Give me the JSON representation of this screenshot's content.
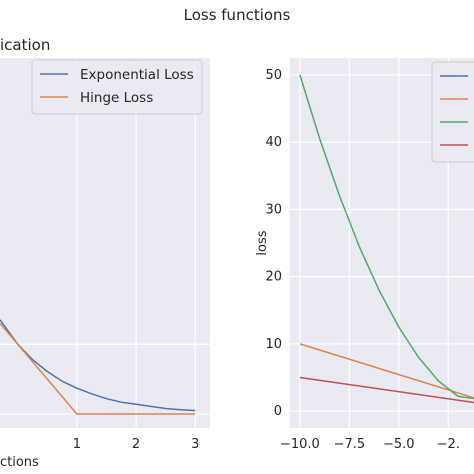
{
  "figure": {
    "suptitle": "Loss functions"
  },
  "chart_data": [
    {
      "type": "line",
      "title": "ication",
      "xlabel": "ctions",
      "ylabel": "",
      "xlim": [
        -0.3,
        3.25
      ],
      "ylim": [
        -0.2,
        5.1
      ],
      "xticks": [
        1,
        2,
        3
      ],
      "grid": true,
      "legend": "top-right",
      "series": [
        {
          "name": "Exponential Loss",
          "color": "#4c72b0",
          "x": [
            -0.3,
            0,
            0.25,
            0.5,
            0.75,
            1,
            1.25,
            1.5,
            1.75,
            2,
            2.25,
            2.5,
            2.75,
            3
          ],
          "y": [
            1.35,
            1.0,
            0.78,
            0.61,
            0.47,
            0.37,
            0.29,
            0.22,
            0.17,
            0.14,
            0.11,
            0.08,
            0.06,
            0.05
          ]
        },
        {
          "name": "Hinge Loss",
          "color": "#dd8452",
          "x": [
            -0.3,
            1,
            3
          ],
          "y": [
            1.3,
            0,
            0
          ]
        }
      ]
    },
    {
      "type": "line",
      "title": "",
      "xlabel": "",
      "ylabel": "loss",
      "xlim": [
        -10.5,
        -1.2
      ],
      "ylim": [
        -2.5,
        52.5
      ],
      "xticks": [
        -10.0,
        -7.5,
        -5.0,
        -2.5
      ],
      "xtick_labels": [
        "−10.0",
        "−7.5",
        "−5.0",
        "−2."
      ],
      "yticks": [
        0,
        10,
        20,
        30,
        40,
        50
      ],
      "grid": true,
      "legend": "top-right",
      "series": [
        {
          "color": "#4c72b0",
          "x": [],
          "y": []
        },
        {
          "color": "#dd8452",
          "x": [
            -10,
            -1
          ],
          "y": [
            10,
            1.8
          ]
        },
        {
          "color": "#55a868",
          "x": [
            -10,
            -9,
            -8,
            -7,
            -6,
            -5,
            -4,
            -3,
            -2,
            -1
          ],
          "y": [
            50,
            40.5,
            32,
            24.5,
            18,
            12.5,
            8,
            4.5,
            2.2,
            1.8
          ]
        },
        {
          "color": "#c44e52",
          "x": [
            -10,
            -1
          ],
          "y": [
            5,
            1.2
          ]
        }
      ]
    }
  ]
}
